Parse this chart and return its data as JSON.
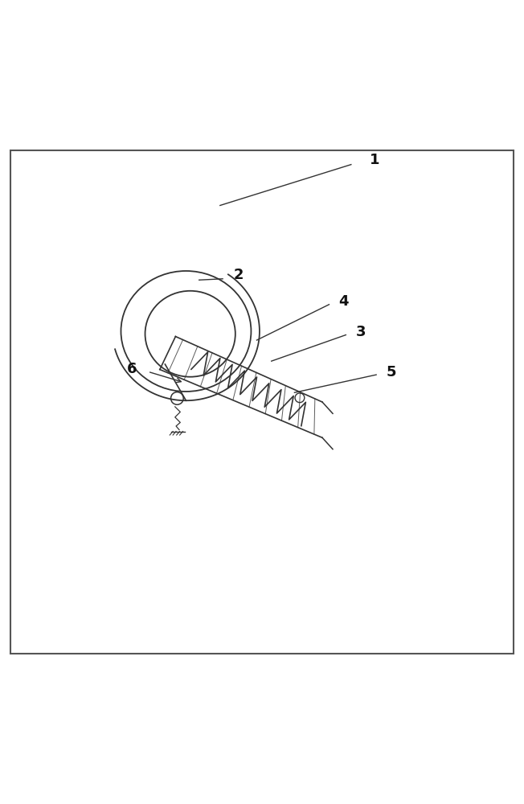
{
  "fig_width": 6.52,
  "fig_height": 10.0,
  "dpi": 100,
  "bg_color": "#ffffff",
  "border_color": "#555555",
  "line_color": "#333333",
  "label_color": "#111111"
}
